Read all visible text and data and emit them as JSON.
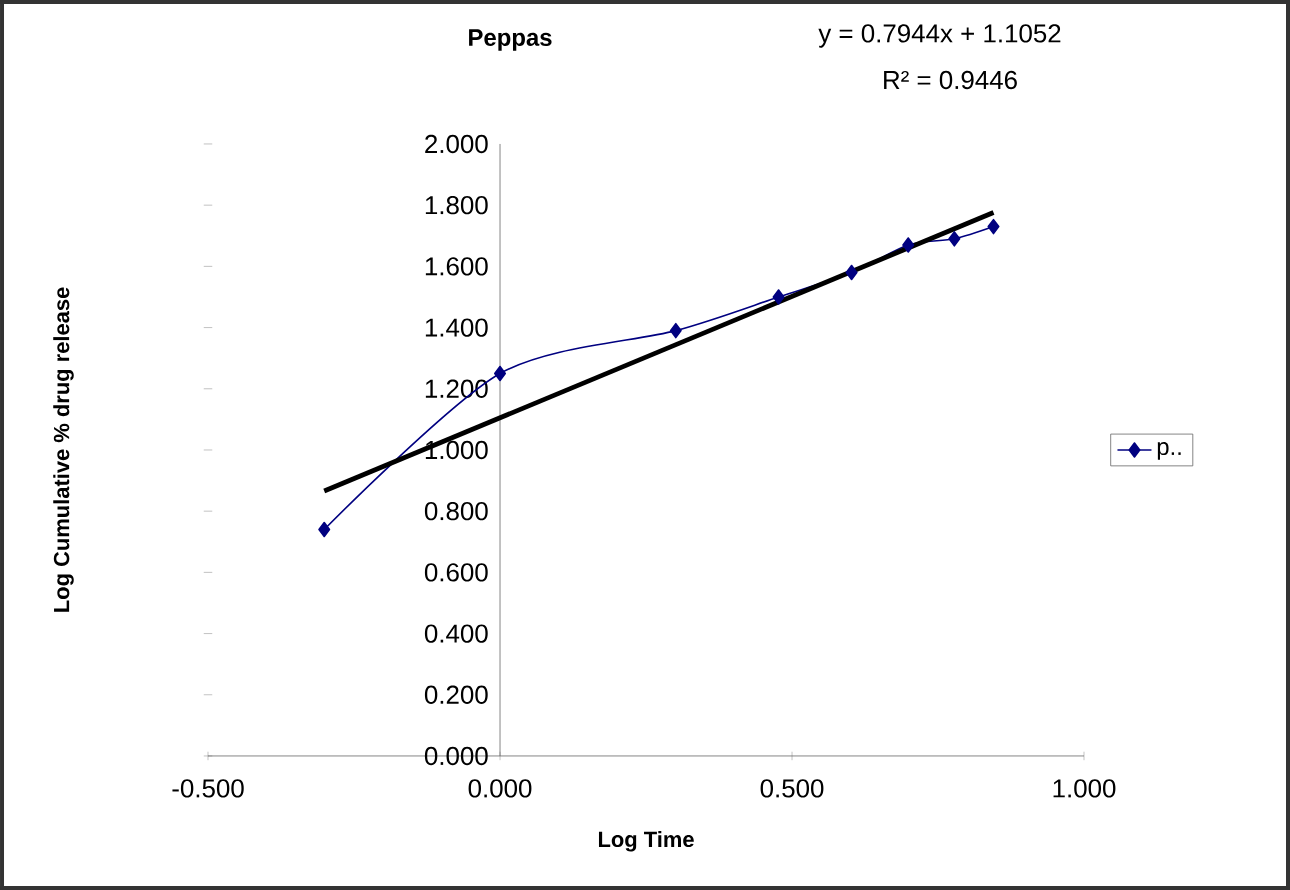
{
  "chart_data": {
    "type": "line",
    "title": "Peppas",
    "xlabel": "Log Time",
    "ylabel": "Log Cumulative % drug release",
    "annotations": [
      "y = 0.7944x + 1.1052",
      "R² = 0.9446"
    ],
    "xlim": [
      -0.5,
      1.0
    ],
    "ylim": [
      0,
      2.0
    ],
    "xticks": [
      {
        "value": -0.5,
        "label": "-0.500"
      },
      {
        "value": 0,
        "label": "0.000"
      },
      {
        "value": 0.5,
        "label": "0.500"
      },
      {
        "value": 1.0,
        "label": "1.000"
      }
    ],
    "yticks": [
      {
        "value": 0,
        "label": "0.000"
      },
      {
        "value": 0.2,
        "label": "0.200"
      },
      {
        "value": 0.4,
        "label": "0.400"
      },
      {
        "value": 0.6,
        "label": "0.600"
      },
      {
        "value": 0.8,
        "label": "0.800"
      },
      {
        "value": 1.0,
        "label": "1.000"
      },
      {
        "value": 1.2,
        "label": "1.200"
      },
      {
        "value": 1.4,
        "label": "1.400"
      },
      {
        "value": 1.6,
        "label": "1.600"
      },
      {
        "value": 1.8,
        "label": "1.800"
      },
      {
        "value": 2.0,
        "label": "2.000"
      }
    ],
    "grid": false,
    "legend": "right",
    "series": [
      {
        "name": "p..",
        "color": "#000080",
        "marker": "diamond",
        "x": [
          -0.301,
          0,
          0.301,
          0.477,
          0.602,
          0.699,
          0.778,
          0.845
        ],
        "values": [
          0.74,
          1.25,
          1.39,
          1.5,
          1.58,
          1.67,
          1.69,
          1.73
        ]
      },
      {
        "color": "#000000",
        "marker": "none",
        "x": [
          -0.301,
          0.845
        ],
        "values": [
          0.866,
          1.776
        ]
      }
    ]
  }
}
